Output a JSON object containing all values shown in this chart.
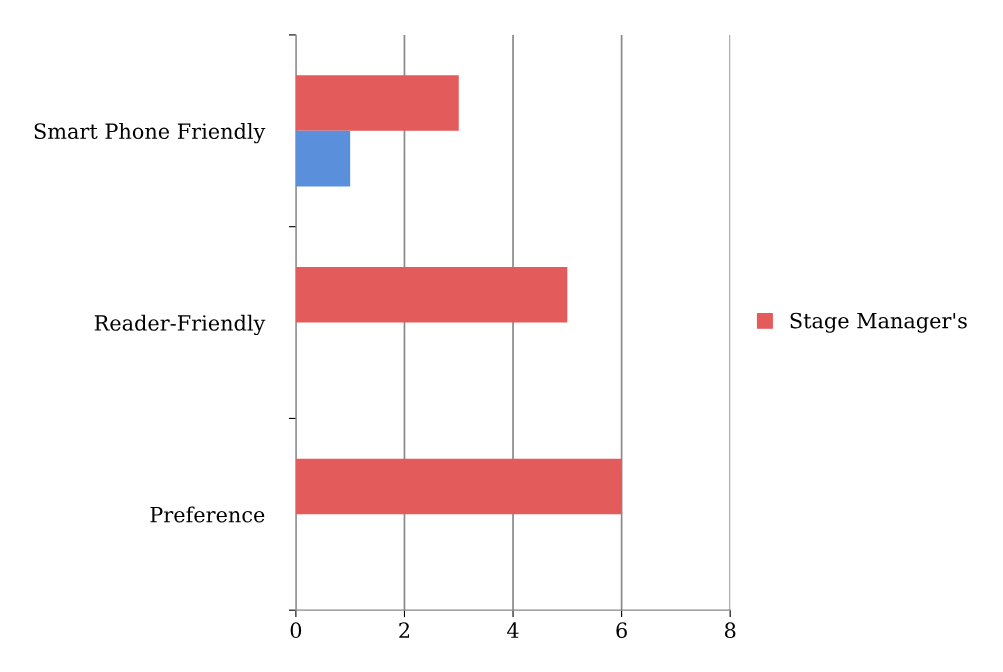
{
  "chart_data": {
    "type": "bar",
    "orientation": "horizontal",
    "categories": [
      "Smart Phone Friendly",
      "Reader-Friendly",
      "Preference"
    ],
    "series": [
      {
        "name": "Stage Manager's",
        "color": "#e35b5b",
        "values": [
          3,
          5,
          6
        ]
      },
      {
        "color": "#5a8fdc",
        "values": [
          1,
          0,
          0
        ]
      }
    ],
    "xlim": [
      0,
      8
    ],
    "xticks": [
      0,
      2,
      4,
      6,
      8
    ],
    "grid": "x",
    "legend": "right"
  }
}
